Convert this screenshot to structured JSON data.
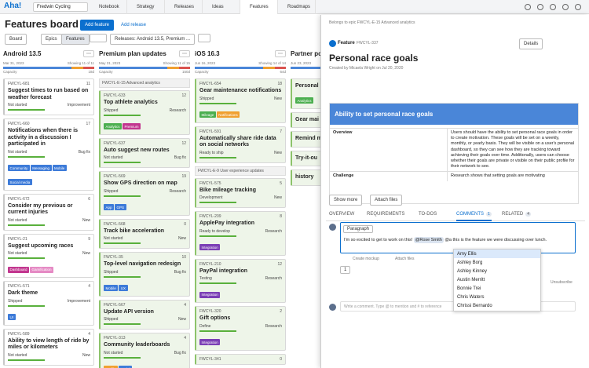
{
  "nav": {
    "logo": "Aha!",
    "workspace": "Fredwin Cycling",
    "tabs": [
      "Notebook",
      "Strategy",
      "Releases",
      "Ideas",
      "Features",
      "Roadmaps"
    ],
    "active": 4
  },
  "header": {
    "title": "Features board",
    "add_feature": "Add feature",
    "add_release": "Add release"
  },
  "toolbar": {
    "view": "Board",
    "epics": "Epics",
    "features": "Features",
    "releases": "Releases: Android 13.5, Premium ..."
  },
  "columns": [
    {
      "name": "Android 13.5",
      "date": "Mar 31, 2023",
      "showing": "Showing 11 of 11",
      "capacity_label": "Capacity",
      "capacity": "18d",
      "items": [
        {
          "id": "FWCYL-681",
          "count": 11,
          "title": "Suggest times to run based on weather forecast",
          "status": "Not started",
          "kind": "Improvement"
        },
        {
          "id": "FWCYL-660",
          "count": 17,
          "title": "Notifications when there is activity in a discussion I participated in",
          "status": "Not started",
          "kind": "Bug fix",
          "tags": [
            {
              "label": "Community",
              "color": "#3d7bd9"
            },
            {
              "label": "Messaging",
              "color": "#3d7bd9"
            },
            {
              "label": "Mobile",
              "color": "#3d7bd9"
            },
            {
              "label": "Social media",
              "color": "#3d7bd9"
            }
          ]
        },
        {
          "id": "FWCYL-672",
          "count": 6,
          "title": "Consider my previous or current injuries",
          "status": "Not started",
          "kind": "New"
        },
        {
          "id": "FWCYL-21",
          "count": 9,
          "title": "Suggest upcoming races",
          "status": "Not started",
          "kind": "New",
          "tags": [
            {
              "label": "Dashboard",
              "color": "#c2368f"
            },
            {
              "label": "Gamification",
              "color": "#e58ac4"
            }
          ]
        },
        {
          "id": "FWCYL-571",
          "count": 4,
          "title": "Dark theme",
          "status": "Shipped",
          "kind": "Improvement",
          "tags": [
            {
              "label": "UI",
              "color": "#3d7bd9"
            }
          ]
        },
        {
          "id": "FWCYL-589",
          "count": 4,
          "title": "Ability to view length of ride by miles or kilometers",
          "status": "Not started",
          "kind": "New"
        }
      ]
    },
    {
      "name": "Premium plan updates",
      "date": "May 31, 2023",
      "showing": "Showing 11 of 15",
      "capacity_label": "Capacity",
      "capacity": "150d",
      "items": [
        {
          "epic": "FWCYL-E-15 Advanced analytics"
        },
        {
          "id": "FWCYL-633",
          "count": 12,
          "title": "Top athlete analytics",
          "status": "Shipped",
          "kind": "Research",
          "tags": [
            {
              "label": "Analytics",
              "color": "#4caf50"
            },
            {
              "label": "Premium",
              "color": "#c2368f"
            }
          ]
        },
        {
          "id": "FWCYL-637",
          "count": 12,
          "title": "Auto suggest new routes",
          "status": "Not started",
          "kind": "Bug fix"
        },
        {
          "id": "FWCYL-569",
          "count": 19,
          "title": "Show GPS direction on map",
          "status": "Shipped",
          "kind": "Research",
          "tags": [
            {
              "label": "App",
              "color": "#3d7bd9"
            },
            {
              "label": "GPS",
              "color": "#3d7bd9"
            }
          ]
        },
        {
          "id": "FWCYL-568",
          "count": 0,
          "title": "Track bike acceleration",
          "status": "Not started",
          "kind": "New"
        },
        {
          "id": "FWCYL-35",
          "count": 10,
          "title": "Top-level navigation redesign",
          "status": "Shipped",
          "kind": "Bug fix",
          "tags": [
            {
              "label": "Mobile",
              "color": "#3d7bd9"
            },
            {
              "label": "UX",
              "color": "#3d7bd9"
            }
          ]
        },
        {
          "id": "FWCYL-567",
          "count": 4,
          "title": "Update API version",
          "status": "Shipped",
          "kind": "New"
        },
        {
          "id": "FWCYL-313",
          "count": 4,
          "title": "Community leaderboards",
          "status": "Not started",
          "kind": "Bug fix",
          "tags": [
            {
              "label": "Profile",
              "color": "#f0a030"
            },
            {
              "label": "Social",
              "color": "#3d7bd9"
            }
          ]
        }
      ]
    },
    {
      "name": "iOS 16.3",
      "date": "Jun 16, 2023",
      "showing": "Showing 14 of 14",
      "capacity_label": "Capacity",
      "capacity": "64d",
      "items": [
        {
          "id": "FWCYL-654",
          "count": 18,
          "title": "Gear maintenance notifications",
          "status": "Shipped",
          "kind": "New",
          "tags": [
            {
              "label": "Mileage",
              "color": "#4caf50"
            },
            {
              "label": "Notifications",
              "color": "#f0a030"
            }
          ]
        },
        {
          "id": "FWCYL-591",
          "count": 7,
          "title": "Automatically share ride data on social networks",
          "status": "Ready to ship",
          "kind": "New"
        },
        {
          "epic": "FWCYL-E-9 User experience updates"
        },
        {
          "id": "FWCYL-575",
          "count": 5,
          "title": "Bike mileage tracking",
          "status": "Development",
          "kind": "New"
        },
        {
          "id": "FWCYL-209",
          "count": 8,
          "title": "ApplePay integration",
          "status": "Ready to develop",
          "kind": "Research",
          "tags": [
            {
              "label": "Integration",
              "color": "#7b3fb5"
            }
          ]
        },
        {
          "id": "FWCYL-210",
          "count": 12,
          "title": "PayPal integration",
          "status": "Testing",
          "kind": "Research",
          "tags": [
            {
              "label": "Integration",
              "color": "#7b3fb5"
            }
          ]
        },
        {
          "id": "FWCYL-320",
          "count": 2,
          "title": "Gift options",
          "status": "Define",
          "kind": "Research",
          "tags": [
            {
              "label": "Integration",
              "color": "#7b3fb5"
            }
          ]
        },
        {
          "id": "FWCYL-341",
          "count": 0
        }
      ]
    },
    {
      "name": "Partner por",
      "date": "Jun 23, 2023",
      "items": [
        {
          "title": "Personal",
          "tags": [
            {
              "label": "Analytics",
              "color": "#4caf50"
            }
          ]
        },
        {
          "title": "Gear mai"
        },
        {
          "title": "Remind m"
        },
        {
          "title": "Try-it-ou"
        },
        {
          "title": "history"
        }
      ]
    }
  ],
  "drawer": {
    "breadcrumb": "Belongs to epic FWCYL-E-15 Advanced analytics",
    "kind": "Feature",
    "id": "FWCYL-337",
    "details": "Details",
    "title": "Personal race goals",
    "created": "Created by Micaela Wright on Jul 20, 2020",
    "banner": "Ability to set personal race goals",
    "rows": [
      [
        "Overview",
        "Users should have the ability to set personal race goals in order to create motivation. These goals will be set on a weekly, monthly, or yearly basis. They will be visible on a user's personal dashboard, so they can see how they are tracking toward achieving their goals over time. Additionally, users can choose whether their goals are private or visible on their public profile for their network to see."
      ],
      [
        "Challenge",
        "Research shows that setting goals are motivating"
      ]
    ],
    "show_more": "Show more",
    "attach": "Attach files",
    "tabs": [
      {
        "label": "OVERVIEW"
      },
      {
        "label": "REQUIREMENTS"
      },
      {
        "label": "TO-DOS"
      },
      {
        "label": "COMMENTS",
        "count": 1
      },
      {
        "label": "RELATED",
        "count": 4
      }
    ],
    "active_tab": 3,
    "format": "Paragraph",
    "comment": {
      "pre": "I'm so excited to get to work on this!",
      "mention": "@Rose Smith",
      "post": "@a this is the feature we were discussing over lunch."
    },
    "actions": [
      "Create mockup",
      "Attach files"
    ],
    "reaction": 1,
    "unsubscribe": "Unsubscribe",
    "placeholder": "Write a comment. Type @ to mention and # to reference",
    "mentions": [
      "Amy Ellis",
      "Ashley Borg",
      "Ashley Kinney",
      "Austin Merritt",
      "Bonnie Trei",
      "Chris Waters",
      "Chrissi Bernardo"
    ]
  }
}
